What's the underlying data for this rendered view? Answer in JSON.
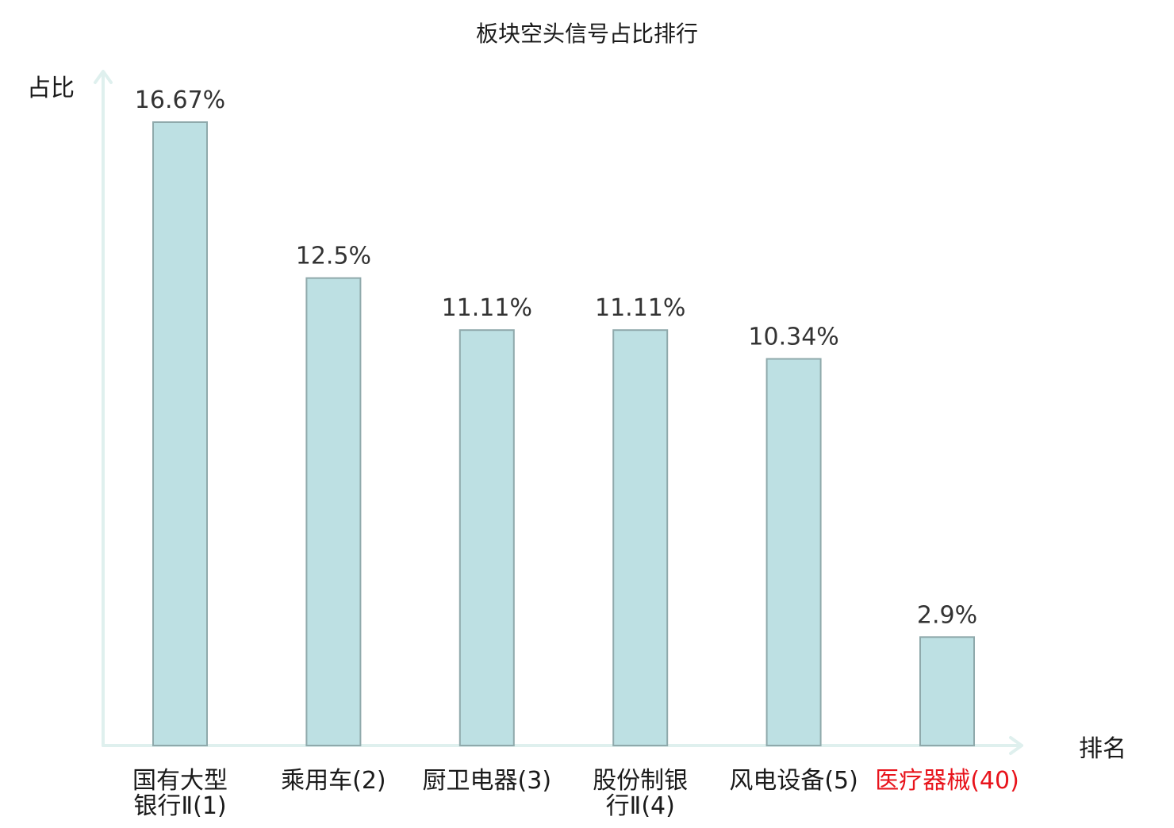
{
  "chart_data": {
    "type": "bar",
    "title": "板块空头信号占比排行",
    "ylabel": "占比",
    "xlabel": "排名",
    "ylim": [
      0,
      17.5
    ],
    "grid": false,
    "categories": [
      {
        "lines": [
          "国有大型",
          "银行Ⅱ(1)"
        ],
        "highlight": false
      },
      {
        "lines": [
          "乘用车(2)"
        ],
        "highlight": false
      },
      {
        "lines": [
          "厨卫电器(3)"
        ],
        "highlight": false
      },
      {
        "lines": [
          "股份制银",
          "行Ⅱ(4)"
        ],
        "highlight": false
      },
      {
        "lines": [
          "风电设备(5)"
        ],
        "highlight": false
      },
      {
        "lines": [
          "医疗器械(40)"
        ],
        "highlight": true
      }
    ],
    "values": [
      16.67,
      12.5,
      11.11,
      11.11,
      10.34,
      2.9
    ],
    "value_labels": [
      "16.67%",
      "12.5%",
      "11.11%",
      "11.11%",
      "10.34%",
      "2.9%"
    ],
    "colors": {
      "bar_fill": "#bde0e3",
      "bar_stroke": "#8fa9ab",
      "axis": "#dff0ee",
      "highlight_text": "#e8141c",
      "text": "#1a1a1a"
    }
  }
}
